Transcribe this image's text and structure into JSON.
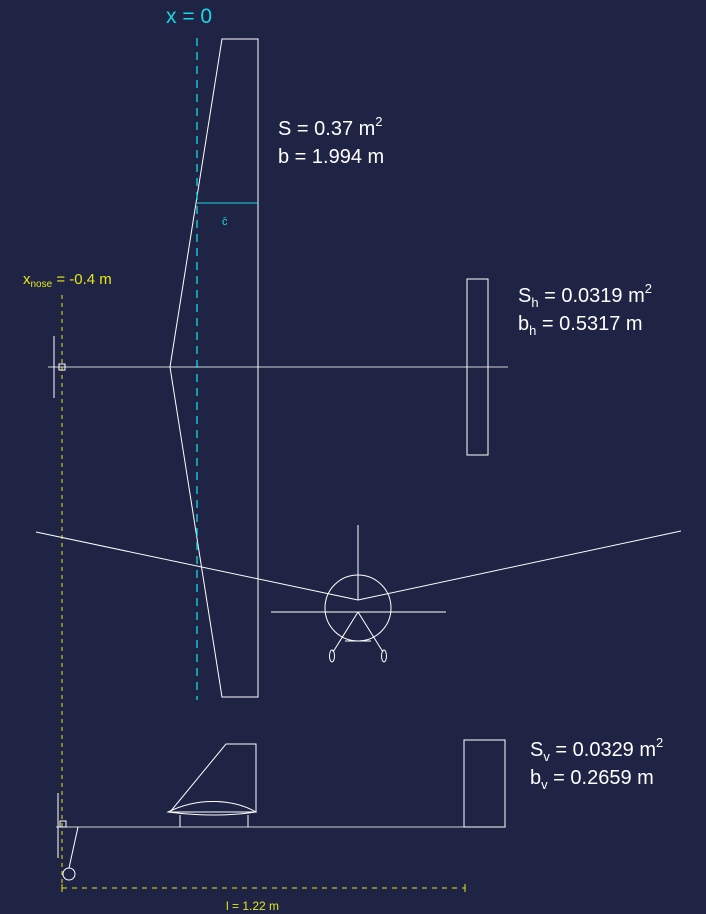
{
  "colors": {
    "background": "#1f2444",
    "outline": "#ffffff",
    "reference_line": "#19d8e6",
    "nose_line": "#e6e61a"
  },
  "reference": {
    "label": "x = 0"
  },
  "mac": {
    "label": "c̄"
  },
  "wing": {
    "area_symbol": "S",
    "area_value": " = 0.37 m",
    "area_exp": "2",
    "span_symbol": "b",
    "span_value": " = 1.994 m"
  },
  "htail": {
    "area_symbol": "S",
    "area_sub": "h",
    "area_value": " = 0.0319 m",
    "area_exp": "2",
    "span_symbol": "b",
    "span_sub": "h",
    "span_value": " = 0.5317 m"
  },
  "vtail": {
    "area_symbol": "S",
    "area_sub": "v",
    "area_value": " = 0.0329 m",
    "area_exp": "2",
    "span_symbol": "b",
    "span_sub": "v",
    "span_value": " = 0.2659 m"
  },
  "nose": {
    "symbol": "x",
    "sub": "nose",
    "value": " = -0.4 m"
  },
  "length": {
    "label": "l = 1.22 m"
  }
}
